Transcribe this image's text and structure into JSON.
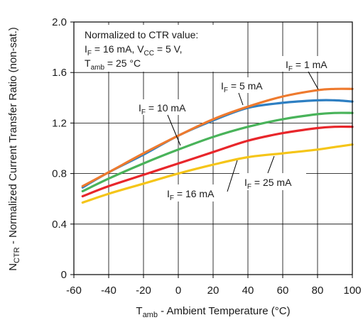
{
  "chart_data": {
    "type": "line",
    "xlabel": {
      "main": "T",
      "sub": "amb",
      "rest": " - Ambient Temperature (°C)"
    },
    "ylabel": {
      "main": "N",
      "sub": "CTR",
      "rest": " - Normalized Current Transfer Ratio (non-sat.)"
    },
    "xlim": [
      -60,
      100
    ],
    "ylim": [
      0,
      2.0
    ],
    "xticks": [
      -60,
      -40,
      -20,
      0,
      20,
      40,
      60,
      80,
      100
    ],
    "yticks": [
      0,
      0.4,
      0.8,
      1.2,
      1.6,
      2.0
    ],
    "xtick_labels": [
      "-60",
      "-40",
      "-20",
      "0",
      "20",
      "40",
      "60",
      "80",
      "100"
    ],
    "ytick_labels": [
      "0",
      "0.4",
      "0.8",
      "1.2",
      "1.6",
      "2.0"
    ],
    "grid": true,
    "note": {
      "line1": "Normalized to CTR value:",
      "line2": {
        "a": "I",
        "a_sub": "F",
        "b": " = 16 mA, V",
        "b_sub": "CC",
        "c": " = 5 V,"
      },
      "line3": {
        "a": "T",
        "a_sub": "amb",
        "b": " = 25 °C"
      }
    },
    "series": [
      {
        "name": "I_F = 1 mA",
        "label": {
          "main": "I",
          "sub": "F",
          "rest": " = 1 mA"
        },
        "color": "#ee7a2e",
        "x": [
          -55,
          -40,
          -20,
          0,
          20,
          40,
          60,
          80,
          90,
          100
        ],
        "y": [
          0.7,
          0.81,
          0.96,
          1.1,
          1.23,
          1.33,
          1.41,
          1.46,
          1.47,
          1.47
        ]
      },
      {
        "name": "I_F = 5 mA",
        "label": {
          "main": "I",
          "sub": "F",
          "rest": " = 5 mA"
        },
        "color": "#2e7fc2",
        "x": [
          -55,
          -40,
          -20,
          0,
          20,
          40,
          60,
          80,
          90,
          100
        ],
        "y": [
          0.69,
          0.81,
          0.95,
          1.1,
          1.22,
          1.32,
          1.36,
          1.38,
          1.38,
          1.37
        ]
      },
      {
        "name": "I_F = 10 mA",
        "label": {
          "main": "I",
          "sub": "F",
          "rest": " = 10 mA"
        },
        "color": "#49b35a",
        "x": [
          -55,
          -40,
          -20,
          0,
          20,
          40,
          60,
          80,
          90,
          100
        ],
        "y": [
          0.66,
          0.76,
          0.88,
          0.99,
          1.09,
          1.17,
          1.23,
          1.27,
          1.28,
          1.28
        ]
      },
      {
        "name": "I_F = 16 mA",
        "label": {
          "main": "I",
          "sub": "F",
          "rest": " = 16 mA"
        },
        "color": "#e8262b",
        "x": [
          -55,
          -40,
          -20,
          0,
          20,
          40,
          60,
          80,
          90,
          100
        ],
        "y": [
          0.62,
          0.7,
          0.79,
          0.88,
          0.97,
          1.06,
          1.12,
          1.16,
          1.17,
          1.17
        ]
      },
      {
        "name": "I_F = 25 mA",
        "label": {
          "main": "I",
          "sub": "F",
          "rest": " = 25 mA"
        },
        "color": "#f5c518",
        "x": [
          -55,
          -40,
          -20,
          0,
          20,
          40,
          60,
          80,
          90,
          100
        ],
        "y": [
          0.57,
          0.64,
          0.72,
          0.8,
          0.87,
          0.93,
          0.96,
          0.99,
          1.01,
          1.03
        ]
      }
    ]
  }
}
